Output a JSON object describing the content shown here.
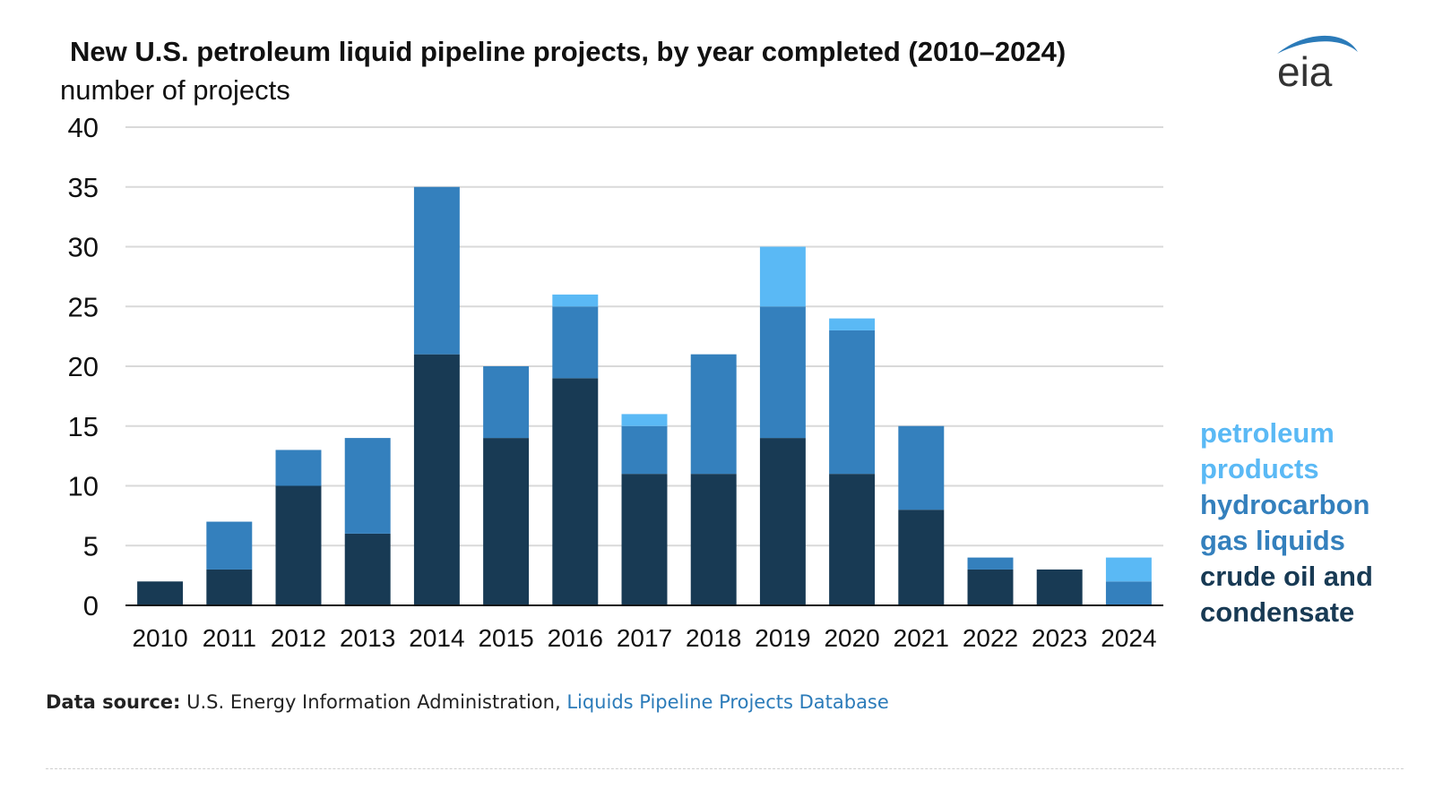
{
  "header": {
    "title": "New U.S. petroleum liquid pipeline projects, by year completed (2010–2024)",
    "logo_text": "eia"
  },
  "colors": {
    "crude": "#183a54",
    "hgl": "#3480bd",
    "products": "#5ab9f5",
    "grid": "#d9d9d9",
    "axis": "#111111"
  },
  "chart_data": {
    "type": "bar",
    "stacked": true,
    "title": "New U.S. petroleum liquid pipeline projects, by year completed (2010–2024)",
    "xlabel": "",
    "ylabel": "number of projects",
    "ylim": [
      0,
      40
    ],
    "yticks": [
      0,
      5,
      10,
      15,
      20,
      25,
      30,
      35,
      40
    ],
    "categories": [
      "2010",
      "2011",
      "2012",
      "2013",
      "2014",
      "2015",
      "2016",
      "2017",
      "2018",
      "2019",
      "2020",
      "2021",
      "2022",
      "2023",
      "2024"
    ],
    "series": [
      {
        "name": "crude oil and condensate",
        "color": "#183a54",
        "values": [
          2,
          3,
          10,
          6,
          21,
          14,
          19,
          11,
          11,
          14,
          11,
          8,
          3,
          3,
          0
        ]
      },
      {
        "name": "hydrocarbon gas liquids",
        "color": "#3480bd",
        "values": [
          0,
          4,
          3,
          8,
          14,
          6,
          6,
          4,
          10,
          11,
          12,
          7,
          1,
          0,
          2
        ]
      },
      {
        "name": "petroleum products",
        "color": "#5ab9f5",
        "values": [
          0,
          0,
          0,
          0,
          0,
          0,
          1,
          1,
          0,
          5,
          1,
          0,
          0,
          0,
          2
        ]
      }
    ],
    "legend": [
      {
        "label": "petroleum products",
        "color": "#5ab9f5"
      },
      {
        "label": "hydrocarbon gas liquids",
        "color": "#3480bd"
      },
      {
        "label": "crude oil and condensate",
        "color": "#183a54"
      }
    ],
    "legend_position": "right"
  },
  "footer": {
    "source_label": "Data source:",
    "source_text": " U.S. Energy Information Administration, ",
    "source_link": "Liquids Pipeline Projects Database"
  }
}
